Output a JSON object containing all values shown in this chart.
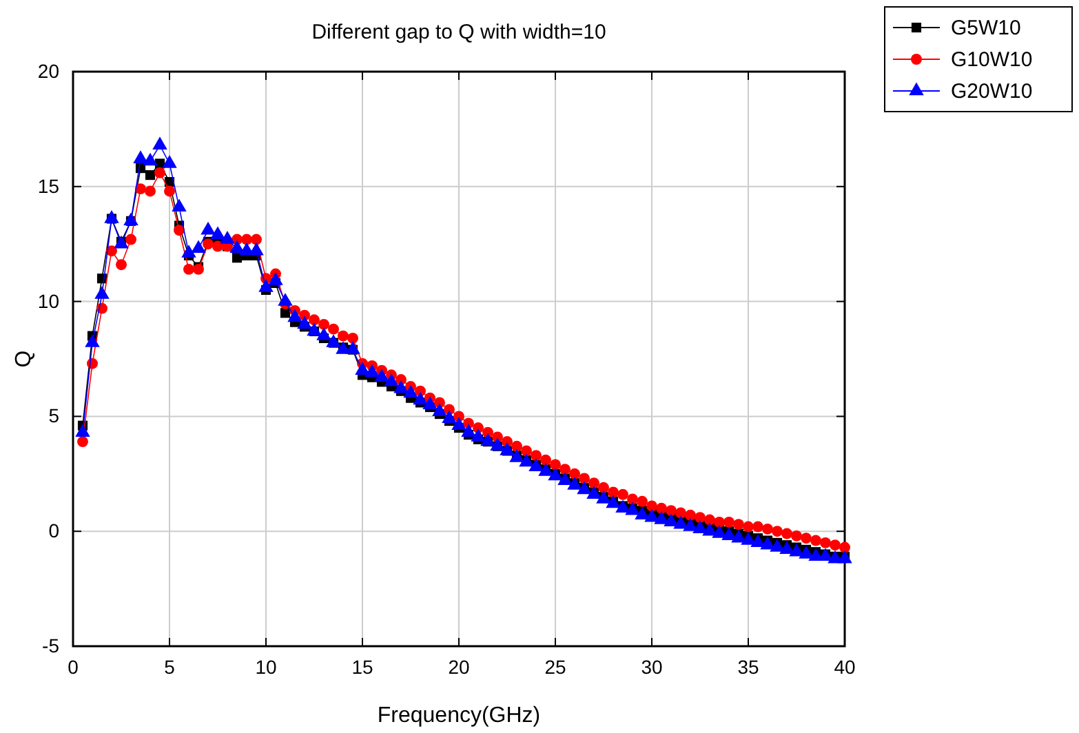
{
  "chart_data": {
    "type": "line",
    "title": "Different gap to Q with width=10",
    "xlabel": "Frequency(GHz)",
    "ylabel": "Q",
    "x": [
      0.5,
      1,
      1.5,
      2,
      2.5,
      3,
      3.5,
      4,
      4.5,
      5,
      5.5,
      6,
      6.5,
      7,
      7.5,
      8,
      8.5,
      9,
      9.5,
      10,
      10.5,
      11,
      11.5,
      12,
      12.5,
      13,
      13.5,
      14,
      14.5,
      15,
      15.5,
      16,
      16.5,
      17,
      17.5,
      18,
      18.5,
      19,
      19.5,
      20,
      20.5,
      21,
      21.5,
      22,
      22.5,
      23,
      23.5,
      24,
      24.5,
      25,
      25.5,
      26,
      26.5,
      27,
      27.5,
      28,
      28.5,
      29,
      29.5,
      30,
      30.5,
      31,
      31.5,
      32,
      32.5,
      33,
      33.5,
      34,
      34.5,
      35,
      35.5,
      36,
      36.5,
      37,
      37.5,
      38,
      38.5,
      39,
      39.5,
      40
    ],
    "series": [
      {
        "name": "G5W10",
        "color": "#000000",
        "marker": "square",
        "values": [
          4.6,
          8.5,
          11.0,
          13.6,
          12.6,
          13.5,
          15.8,
          15.5,
          16.0,
          15.2,
          13.3,
          12.0,
          11.5,
          12.6,
          12.6,
          12.4,
          11.9,
          12.0,
          12.0,
          10.5,
          10.8,
          9.5,
          9.1,
          8.9,
          8.7,
          8.4,
          8.2,
          8.0,
          7.9,
          6.8,
          6.7,
          6.5,
          6.3,
          6.1,
          5.8,
          5.6,
          5.4,
          5.1,
          4.8,
          4.5,
          4.2,
          4.0,
          3.9,
          3.7,
          3.5,
          3.3,
          3.1,
          2.9,
          2.7,
          2.5,
          2.3,
          2.1,
          1.9,
          1.7,
          1.5,
          1.3,
          1.1,
          1.0,
          0.9,
          0.8,
          0.7,
          0.6,
          0.5,
          0.4,
          0.3,
          0.2,
          0.1,
          0.0,
          -0.1,
          -0.2,
          -0.3,
          -0.4,
          -0.5,
          -0.6,
          -0.7,
          -0.8,
          -0.9,
          -1.0,
          -1.1,
          -1.1
        ]
      },
      {
        "name": "G10W10",
        "color": "#ff0000",
        "marker": "circle",
        "values": [
          3.9,
          7.3,
          9.7,
          12.2,
          11.6,
          12.7,
          14.9,
          14.8,
          15.6,
          14.8,
          13.1,
          11.4,
          11.4,
          12.5,
          12.4,
          12.4,
          12.7,
          12.7,
          12.7,
          11.0,
          11.2,
          9.9,
          9.6,
          9.4,
          9.2,
          9.0,
          8.8,
          8.5,
          8.4,
          7.3,
          7.2,
          7.0,
          6.8,
          6.6,
          6.3,
          6.1,
          5.8,
          5.6,
          5.3,
          5.0,
          4.7,
          4.5,
          4.3,
          4.1,
          3.9,
          3.7,
          3.5,
          3.3,
          3.1,
          2.9,
          2.7,
          2.5,
          2.3,
          2.1,
          1.9,
          1.7,
          1.6,
          1.4,
          1.3,
          1.1,
          1.0,
          0.9,
          0.8,
          0.7,
          0.6,
          0.5,
          0.4,
          0.4,
          0.3,
          0.2,
          0.2,
          0.1,
          0.0,
          -0.1,
          -0.2,
          -0.3,
          -0.4,
          -0.5,
          -0.6,
          -0.7
        ]
      },
      {
        "name": "G20W10",
        "color": "#0000ff",
        "marker": "triangle",
        "values": [
          4.3,
          8.2,
          10.3,
          13.6,
          12.5,
          13.5,
          16.2,
          16.1,
          16.8,
          16.0,
          14.1,
          12.1,
          12.3,
          13.1,
          12.9,
          12.7,
          12.3,
          12.2,
          12.2,
          10.6,
          10.9,
          10.0,
          9.3,
          9.0,
          8.7,
          8.5,
          8.2,
          7.9,
          7.9,
          7.0,
          6.9,
          6.7,
          6.5,
          6.2,
          6.0,
          5.7,
          5.5,
          5.2,
          4.9,
          4.6,
          4.3,
          4.1,
          3.9,
          3.7,
          3.5,
          3.2,
          3.0,
          2.8,
          2.6,
          2.4,
          2.2,
          2.0,
          1.8,
          1.6,
          1.4,
          1.2,
          1.0,
          0.9,
          0.7,
          0.6,
          0.5,
          0.4,
          0.3,
          0.2,
          0.1,
          0.0,
          -0.1,
          -0.2,
          -0.3,
          -0.4,
          -0.5,
          -0.6,
          -0.7,
          -0.8,
          -0.9,
          -1.0,
          -1.1,
          -1.1,
          -1.2,
          -1.2
        ]
      }
    ],
    "xlim": [
      0,
      40
    ],
    "xticks": [
      0,
      5,
      10,
      15,
      20,
      25,
      30,
      35,
      40
    ],
    "ylim": [
      -5,
      20
    ],
    "yticks": [
      -5,
      0,
      5,
      10,
      15,
      20
    ],
    "grid": true,
    "legend": "top right",
    "line_style": "solid"
  }
}
